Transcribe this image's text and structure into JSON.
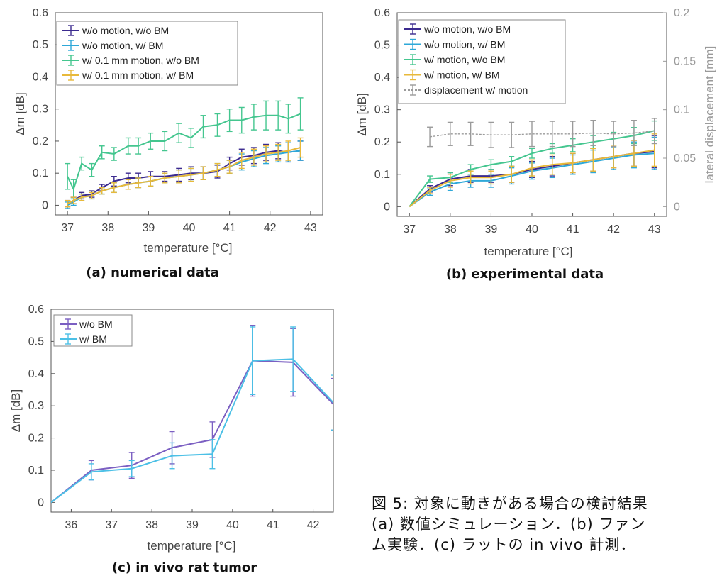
{
  "chart_data": [
    {
      "id": "a",
      "type": "line",
      "title": "(a) numerical data",
      "xlabel": "temperature [°C]",
      "ylabel": "Δm [dB]",
      "xlim": [
        36.7,
        43.3
      ],
      "ylim": [
        -0.03,
        0.6
      ],
      "xticks": [
        37,
        38,
        39,
        40,
        41,
        42,
        43
      ],
      "yticks": [
        0,
        0.1,
        0.2,
        0.3,
        0.4,
        0.5,
        0.6
      ],
      "legend": "top-left",
      "series": [
        {
          "name": "w/o motion, w/o BM",
          "color": "#3b2a8f",
          "x": [
            37.0,
            37.15,
            37.35,
            37.6,
            37.85,
            38.15,
            38.5,
            38.75,
            39.05,
            39.4,
            39.75,
            40.05,
            40.35,
            40.7,
            41.0,
            41.3,
            41.6,
            41.9,
            42.2,
            42.45,
            42.75
          ],
          "y": [
            0.005,
            0.015,
            0.03,
            0.035,
            0.055,
            0.075,
            0.085,
            0.085,
            0.09,
            0.09,
            0.095,
            0.1,
            0.1,
            0.105,
            0.13,
            0.15,
            0.155,
            0.165,
            0.17,
            0.165,
            0.17
          ],
          "err": [
            0.01,
            0.01,
            0.01,
            0.01,
            0.01,
            0.015,
            0.015,
            0.015,
            0.015,
            0.015,
            0.02,
            0.02,
            0.02,
            0.02,
            0.02,
            0.025,
            0.025,
            0.025,
            0.025,
            0.03,
            0.03
          ]
        },
        {
          "name": "w/o motion, w/ BM",
          "color": "#2ea8d8",
          "x": [
            37.0,
            37.15,
            37.35,
            37.6,
            37.85,
            38.15,
            38.5,
            38.75,
            39.05,
            39.4,
            39.75,
            40.05,
            40.35,
            40.7,
            41.0,
            41.3,
            41.6,
            41.9,
            42.2,
            42.45,
            42.75
          ],
          "y": [
            0.0,
            0.01,
            0.025,
            0.03,
            0.045,
            0.055,
            0.065,
            0.07,
            0.075,
            0.085,
            0.09,
            0.095,
            0.1,
            0.11,
            0.12,
            0.135,
            0.145,
            0.155,
            0.16,
            0.165,
            0.17
          ],
          "err": [
            0.01,
            0.01,
            0.01,
            0.01,
            0.01,
            0.015,
            0.015,
            0.015,
            0.015,
            0.015,
            0.02,
            0.02,
            0.02,
            0.02,
            0.02,
            0.025,
            0.025,
            0.025,
            0.025,
            0.03,
            0.03
          ]
        },
        {
          "name": "w/ 0.1 mm motion, w/o BM",
          "color": "#44c68f",
          "x": [
            37.0,
            37.15,
            37.35,
            37.6,
            37.85,
            38.15,
            38.5,
            38.75,
            39.05,
            39.4,
            39.75,
            40.05,
            40.35,
            40.7,
            41.0,
            41.3,
            41.6,
            41.9,
            42.2,
            42.45,
            42.75
          ],
          "y": [
            0.09,
            0.05,
            0.13,
            0.11,
            0.165,
            0.16,
            0.185,
            0.185,
            0.2,
            0.2,
            0.225,
            0.21,
            0.245,
            0.25,
            0.265,
            0.265,
            0.275,
            0.28,
            0.28,
            0.27,
            0.285
          ],
          "err": [
            0.04,
            0.03,
            0.02,
            0.02,
            0.02,
            0.02,
            0.025,
            0.025,
            0.025,
            0.03,
            0.03,
            0.03,
            0.035,
            0.035,
            0.035,
            0.04,
            0.04,
            0.045,
            0.045,
            0.045,
            0.05
          ]
        },
        {
          "name": "w/ 0.1 mm motion, w/ BM",
          "color": "#e8b93a",
          "x": [
            37.0,
            37.15,
            37.35,
            37.6,
            37.85,
            38.15,
            38.5,
            38.75,
            39.05,
            39.4,
            39.75,
            40.05,
            40.35,
            40.7,
            41.0,
            41.3,
            41.6,
            41.9,
            42.2,
            42.45,
            42.75
          ],
          "y": [
            0.005,
            0.015,
            0.025,
            0.03,
            0.045,
            0.055,
            0.065,
            0.07,
            0.075,
            0.085,
            0.09,
            0.095,
            0.1,
            0.11,
            0.12,
            0.14,
            0.15,
            0.16,
            0.165,
            0.17,
            0.18
          ],
          "err": [
            0.01,
            0.01,
            0.01,
            0.01,
            0.01,
            0.015,
            0.015,
            0.015,
            0.015,
            0.015,
            0.02,
            0.02,
            0.02,
            0.02,
            0.02,
            0.025,
            0.025,
            0.025,
            0.025,
            0.03,
            0.03
          ]
        }
      ]
    },
    {
      "id": "b",
      "type": "line",
      "title": "(b) experimental data",
      "xlabel": "temperature [°C]",
      "ylabel": "Δm [dB]",
      "y2label": "lateral displacement [mm]",
      "xlim": [
        36.7,
        43.3
      ],
      "ylim": [
        -0.03,
        0.6
      ],
      "y2lim": [
        -0.01,
        0.2
      ],
      "xticks": [
        37,
        38,
        39,
        40,
        41,
        42,
        43
      ],
      "yticks": [
        0,
        0.1,
        0.2,
        0.3,
        0.4,
        0.5,
        0.6
      ],
      "y2ticks": [
        0,
        0.05,
        0.1,
        0.15,
        0.2
      ],
      "legend": "top-left",
      "series": [
        {
          "name": "w/o motion, w/o BM",
          "color": "#3b2a8f",
          "axis": "left",
          "x": [
            37,
            37.5,
            38,
            38.5,
            39,
            39.5,
            40,
            40.5,
            41,
            41.5,
            42,
            42.5,
            43
          ],
          "y": [
            0,
            0.055,
            0.085,
            0.095,
            0.095,
            0.1,
            0.115,
            0.125,
            0.135,
            0.145,
            0.155,
            0.165,
            0.17
          ],
          "err": [
            0,
            0.01,
            0.02,
            0.02,
            0.02,
            0.025,
            0.025,
            0.03,
            0.03,
            0.035,
            0.035,
            0.04,
            0.05
          ]
        },
        {
          "name": "w/o motion, w/ BM",
          "color": "#2ea8d8",
          "axis": "left",
          "x": [
            37,
            37.5,
            38,
            38.5,
            39,
            39.5,
            40,
            40.5,
            41,
            41.5,
            42,
            42.5,
            43
          ],
          "y": [
            0,
            0.045,
            0.07,
            0.08,
            0.08,
            0.095,
            0.11,
            0.12,
            0.13,
            0.14,
            0.15,
            0.16,
            0.165
          ],
          "err": [
            0,
            0.01,
            0.02,
            0.02,
            0.02,
            0.025,
            0.025,
            0.03,
            0.03,
            0.035,
            0.035,
            0.04,
            0.05
          ]
        },
        {
          "name": "w/ motion, w/o BM",
          "color": "#44c68f",
          "axis": "left",
          "x": [
            37,
            37.5,
            38,
            38.5,
            39,
            39.5,
            40,
            40.5,
            41,
            41.5,
            42,
            42.5,
            43
          ],
          "y": [
            0,
            0.085,
            0.09,
            0.115,
            0.13,
            0.14,
            0.165,
            0.18,
            0.19,
            0.2,
            0.21,
            0.22,
            0.235
          ],
          "err": [
            0,
            0.01,
            0.015,
            0.015,
            0.015,
            0.015,
            0.015,
            0.015,
            0.02,
            0.02,
            0.02,
            0.025,
            0.03
          ]
        },
        {
          "name": "w/ motion, w/ BM",
          "color": "#e8b93a",
          "axis": "left",
          "x": [
            37,
            37.5,
            38,
            38.5,
            39,
            39.5,
            40,
            40.5,
            41,
            41.5,
            42,
            42.5,
            43
          ],
          "y": [
            0,
            0.05,
            0.08,
            0.09,
            0.09,
            0.1,
            0.12,
            0.13,
            0.135,
            0.145,
            0.155,
            0.165,
            0.175
          ],
          "err": [
            0,
            0.01,
            0.02,
            0.02,
            0.02,
            0.025,
            0.025,
            0.03,
            0.03,
            0.035,
            0.035,
            0.04,
            0.05
          ]
        },
        {
          "name": "displacement w/ motion",
          "color": "#9a9a9a",
          "axis": "right",
          "dashed": true,
          "x": [
            37.5,
            38,
            38.5,
            39,
            39.5,
            40,
            40.5,
            41,
            41.5,
            42,
            42.5,
            43
          ],
          "y": [
            0.072,
            0.075,
            0.075,
            0.074,
            0.074,
            0.075,
            0.075,
            0.075,
            0.076,
            0.075,
            0.076,
            0.078
          ],
          "err": [
            0.01,
            0.012,
            0.012,
            0.013,
            0.013,
            0.013,
            0.013,
            0.013,
            0.013,
            0.013,
            0.013,
            0.013
          ]
        }
      ]
    },
    {
      "id": "c",
      "type": "line",
      "title": "(c) in vivo rat tumor",
      "xlabel": "temperature [°C]",
      "ylabel": "Δm [dB]",
      "xlim": [
        35.5,
        42.5
      ],
      "ylim": [
        -0.03,
        0.6
      ],
      "xticks": [
        36,
        37,
        38,
        39,
        40,
        41,
        42
      ],
      "yticks": [
        0,
        0.1,
        0.2,
        0.3,
        0.4,
        0.5,
        0.6
      ],
      "legend": "top-left",
      "series": [
        {
          "name": "w/o BM",
          "color": "#7b5fc2",
          "x": [
            35.5,
            36.5,
            37.5,
            38.5,
            39.5,
            40.5,
            41.5,
            42.5
          ],
          "y": [
            0,
            0.1,
            0.115,
            0.17,
            0.195,
            0.44,
            0.435,
            0.305
          ],
          "err": [
            0,
            0.03,
            0.04,
            0.05,
            0.055,
            0.11,
            0.105,
            0.08
          ]
        },
        {
          "name": "w/ BM",
          "color": "#4cc0e6",
          "x": [
            35.5,
            36.5,
            37.5,
            38.5,
            39.5,
            40.5,
            41.5,
            42.5
          ],
          "y": [
            0,
            0.095,
            0.105,
            0.145,
            0.15,
            0.44,
            0.445,
            0.31
          ],
          "err": [
            0,
            0.025,
            0.025,
            0.04,
            0.045,
            0.105,
            0.1,
            0.085
          ]
        }
      ]
    }
  ],
  "caption": {
    "line1": "図 5: 対象に動きがある場合の検討結果",
    "line2": "(a) 数値シミュレーション．(b) ファン",
    "line3": "ム実験．(c) ラットの in vivo 計測．"
  }
}
